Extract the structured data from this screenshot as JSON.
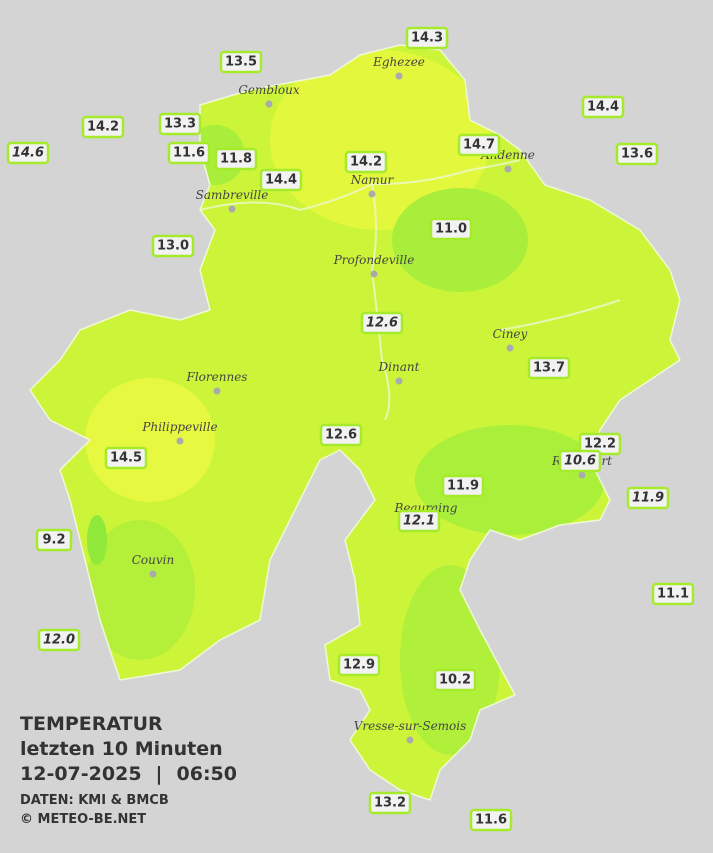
{
  "title": {
    "heading": "TEMPERATUR",
    "period": "letzten 10 Minuten",
    "date": "12-07-2025",
    "separator": "|",
    "time": "06:50",
    "source": "DATEN: KMI & BMCB",
    "copyright": "© METEO-BE.NET"
  },
  "cities": [
    "Eghezee",
    "Gembloux",
    "Andenne",
    "Namur",
    "Sambreville",
    "Profondeville",
    "Ciney",
    "Dinant",
    "Florennes",
    "Philippeville",
    "Rochefort",
    "Beauraing",
    "Couvin",
    "Vresse-sur-Semois"
  ],
  "stations": [
    {
      "label": "14.3",
      "italic": false
    },
    {
      "label": "13.5",
      "italic": false
    },
    {
      "label": "14.2",
      "italic": false
    },
    {
      "label": "13.3",
      "italic": false
    },
    {
      "label": "14.6",
      "italic": true
    },
    {
      "label": "11.6",
      "italic": false
    },
    {
      "label": "11.8",
      "italic": false
    },
    {
      "label": "14.4",
      "italic": false
    },
    {
      "label": "14.2",
      "italic": false
    },
    {
      "label": "14.7",
      "italic": false
    },
    {
      "label": "14.4",
      "italic": false
    },
    {
      "label": "13.6",
      "italic": false
    },
    {
      "label": "13.0",
      "italic": false
    },
    {
      "label": "11.0",
      "italic": false
    },
    {
      "label": "12.6",
      "italic": true
    },
    {
      "label": "13.7",
      "italic": false
    },
    {
      "label": "12.6",
      "italic": false
    },
    {
      "label": "12.2",
      "italic": false
    },
    {
      "label": "10.6",
      "italic": true
    },
    {
      "label": "14.5",
      "italic": false
    },
    {
      "label": "11.9",
      "italic": false
    },
    {
      "label": "11.9",
      "italic": true
    },
    {
      "label": "12.1",
      "italic": true
    },
    {
      "label": "9.2",
      "italic": false
    },
    {
      "label": "11.1",
      "italic": false
    },
    {
      "label": "12.0",
      "italic": true
    },
    {
      "label": "12.9",
      "italic": false
    },
    {
      "label": "10.2",
      "italic": false
    },
    {
      "label": "13.2",
      "italic": false
    },
    {
      "label": "11.6",
      "italic": false
    }
  ]
}
